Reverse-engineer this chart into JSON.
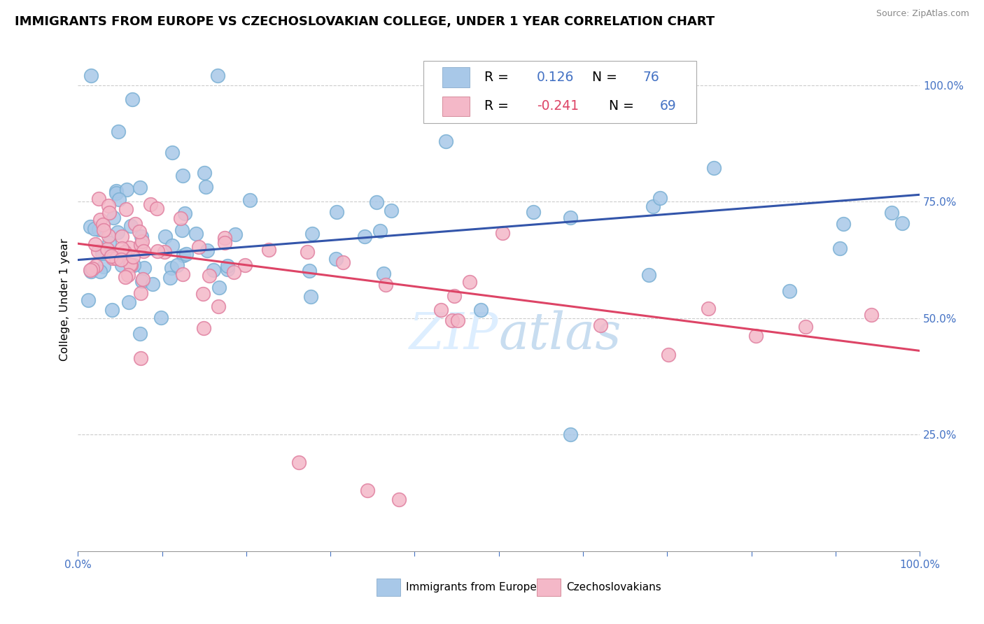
{
  "title": "IMMIGRANTS FROM EUROPE VS CZECHOSLOVAKIAN COLLEGE, UNDER 1 YEAR CORRELATION CHART",
  "source_text": "Source: ZipAtlas.com",
  "ylabel": "College, Under 1 year",
  "xlim": [
    0.0,
    1.0
  ],
  "ylim": [
    0.0,
    1.08
  ],
  "blue_R": 0.126,
  "blue_N": 76,
  "pink_R": -0.241,
  "pink_N": 69,
  "blue_marker_color": "#a8c8e8",
  "blue_edge_color": "#7ab0d4",
  "pink_marker_color": "#f4b8c8",
  "pink_edge_color": "#e080a0",
  "blue_line_color": "#3355aa",
  "pink_line_color": "#dd4466",
  "legend_blue_label": "Immigrants from Europe",
  "legend_pink_label": "Czechoslovakians",
  "blue_R_color": "#4472c4",
  "pink_R_color": "#dd4466",
  "N_color": "#4472c4",
  "title_fontsize": 13,
  "watermark_color": "#ddeeff",
  "blue_line_start_y": 0.625,
  "blue_line_end_y": 0.765,
  "pink_line_start_y": 0.66,
  "pink_line_end_y": 0.43
}
